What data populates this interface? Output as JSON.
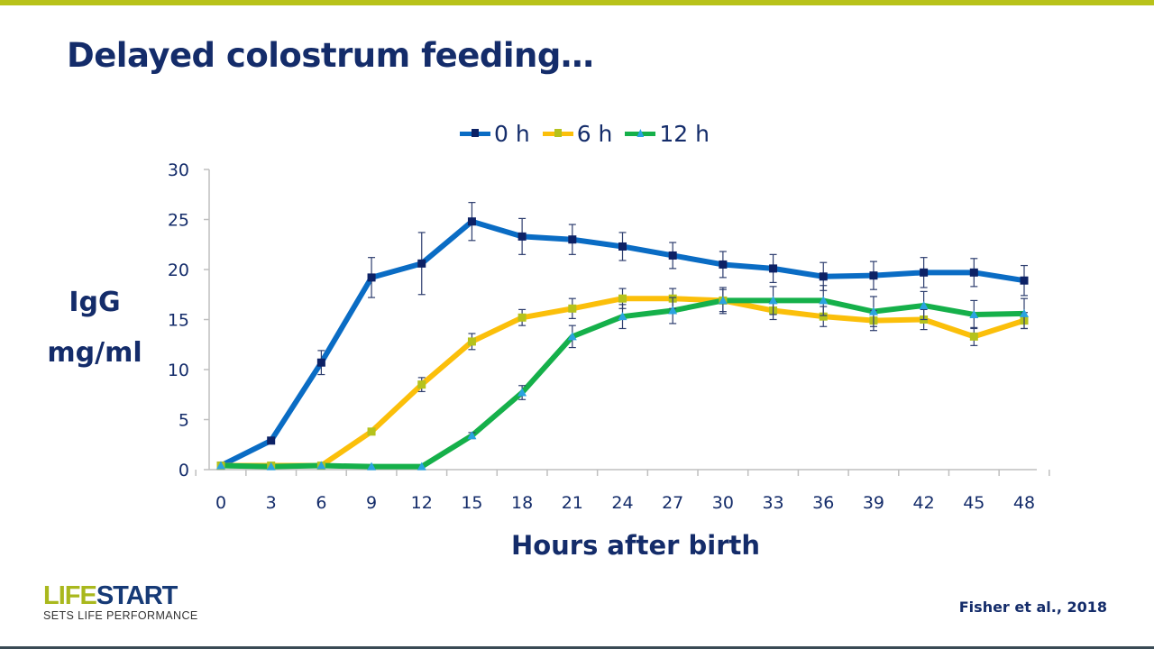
{
  "slide": {
    "title": "Delayed colostrum feeding…",
    "citation": "Fisher et al., 2018",
    "logo": {
      "part1": "LIFE",
      "part2": "START",
      "tagline": "SETS LIFE PERFORMANCE",
      "colors": {
        "part1": "#a9b81d",
        "part2": "#163a76"
      }
    },
    "accent_bar_color": "#b8c21a"
  },
  "chart_data": {
    "type": "line",
    "title": "",
    "xlabel": "Hours after birth",
    "ylabel": [
      "IgG",
      "mg/ml"
    ],
    "x": [
      0,
      3,
      6,
      9,
      12,
      15,
      18,
      21,
      24,
      27,
      30,
      33,
      36,
      39,
      42,
      45,
      48
    ],
    "xlim": [
      0,
      48
    ],
    "ylim": [
      0,
      30
    ],
    "yticks": [
      0,
      5,
      10,
      15,
      20,
      25,
      30
    ],
    "grid": false,
    "legend_position": "top",
    "error_bars": true,
    "series": [
      {
        "name": "0 h",
        "color": "#0a6cc4",
        "marker": "square",
        "marker_color": "#0d2266",
        "values": [
          0.4,
          2.9,
          10.7,
          19.2,
          20.6,
          24.8,
          23.3,
          23.0,
          22.3,
          21.4,
          20.5,
          20.1,
          19.3,
          19.4,
          19.7,
          19.7,
          18.9
        ],
        "errors": [
          0.2,
          0.3,
          1.2,
          2.0,
          3.1,
          1.9,
          1.8,
          1.5,
          1.4,
          1.3,
          1.3,
          1.4,
          1.4,
          1.4,
          1.5,
          1.4,
          1.5
        ]
      },
      {
        "name": "6 h",
        "color": "#fbbf0a",
        "marker": "square",
        "marker_color": "#b5c21c",
        "values": [
          0.4,
          0.4,
          0.4,
          3.8,
          8.5,
          12.8,
          15.2,
          16.1,
          17.1,
          17.1,
          16.9,
          15.9,
          15.3,
          14.9,
          15.0,
          13.3,
          14.9
        ],
        "errors": [
          0.1,
          0.1,
          0.1,
          0.2,
          0.7,
          0.8,
          0.8,
          1.0,
          1.0,
          1.0,
          1.1,
          0.9,
          1.0,
          1.0,
          1.0,
          0.9,
          0.8
        ]
      },
      {
        "name": "12 h",
        "color": "#15b04a",
        "marker": "triangle",
        "marker_color": "#2aa3e0",
        "values": [
          0.4,
          0.3,
          0.4,
          0.3,
          0.3,
          3.4,
          7.7,
          13.3,
          15.3,
          15.9,
          16.9,
          16.9,
          16.9,
          15.8,
          16.4,
          15.5,
          15.6
        ],
        "errors": [
          0.1,
          0.1,
          0.1,
          0.1,
          0.1,
          0.3,
          0.7,
          1.1,
          1.2,
          1.3,
          1.3,
          1.4,
          1.5,
          1.5,
          1.4,
          1.4,
          1.5
        ]
      }
    ]
  }
}
